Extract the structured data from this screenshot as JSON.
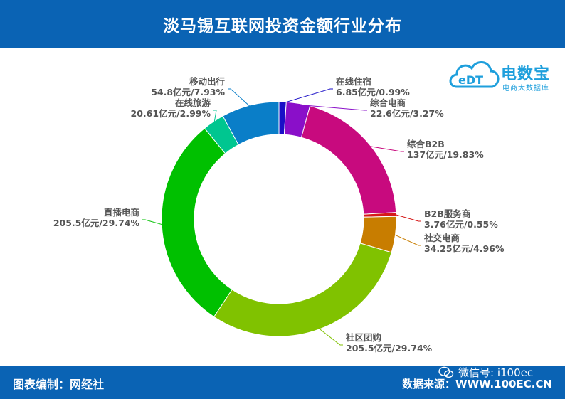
{
  "header": {
    "title": "淡马锡互联网投资金额行业分布"
  },
  "footer": {
    "editor": "图表编制：网经社",
    "source": "数据来源：WWW.100EC.CN",
    "wechat": "微信号: i100ec"
  },
  "logo": {
    "brand": "电数宝",
    "sub": "电商大数据库",
    "mark": "eDT"
  },
  "colors": {
    "header_bg": "#0a63b4",
    "logo": "#1e9fdc"
  },
  "chart_data": {
    "type": "pie",
    "donut": true,
    "start_angle_deg": 0,
    "direction": "clockwise",
    "slices": [
      {
        "name": "在线住宿",
        "value": 6.85,
        "value_label": "6.85亿元/0.99%",
        "percent": 0.99,
        "color": "#1a0fc7"
      },
      {
        "name": "综合电商",
        "value": 22.6,
        "value_label": "22.6亿元/3.27%",
        "percent": 3.27,
        "color": "#8a0fc9"
      },
      {
        "name": "综合B2B",
        "value": 137,
        "value_label": "137亿元/19.83%",
        "percent": 19.83,
        "color": "#c80a7e"
      },
      {
        "name": "B2B服务商",
        "value": 3.76,
        "value_label": "3.76亿元/0.55%",
        "percent": 0.55,
        "color": "#d61a1a"
      },
      {
        "name": "社交电商",
        "value": 34.25,
        "value_label": "34.25亿元/4.96%",
        "percent": 4.96,
        "color": "#c87d00"
      },
      {
        "name": "社区团购",
        "value": 205.5,
        "value_label": "205.5亿元/29.74%",
        "percent": 29.74,
        "color": "#80c200"
      },
      {
        "name": "直播电商",
        "value": 205.5,
        "value_label": "205.5亿元/29.74%",
        "percent": 29.74,
        "color": "#00c000"
      },
      {
        "name": "在线旅游",
        "value": 20.61,
        "value_label": "20.61亿元/2.99%",
        "percent": 2.99,
        "color": "#00c690"
      },
      {
        "name": "移动出行",
        "value": 54.8,
        "value_label": "54.8亿元/7.93%",
        "percent": 7.93,
        "color": "#0a7ec8"
      }
    ]
  }
}
